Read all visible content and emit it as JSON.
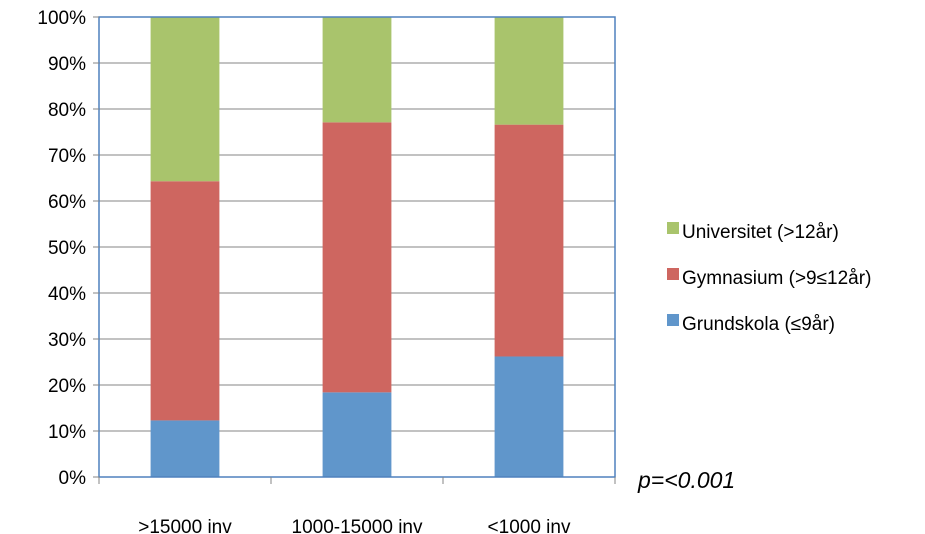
{
  "chart_data": {
    "type": "bar",
    "stacked": true,
    "normalized": true,
    "categories": [
      ">15000 inv",
      "1000-15000 inv",
      "<1000 inv"
    ],
    "series": [
      {
        "name": "Grundskola (≤9år)",
        "color": "#6096cb",
        "values": [
          12.3,
          18.4,
          26.2
        ]
      },
      {
        "name": "Gymnasium (>9≤12år)",
        "color": "#ce6660",
        "values": [
          52.0,
          58.7,
          50.4
        ]
      },
      {
        "name": "Universitet (>12år)",
        "color": "#a9c46c",
        "values": [
          35.7,
          22.9,
          23.4
        ]
      }
    ],
    "ylim": [
      0,
      100
    ],
    "yticks": [
      "0%",
      "10%",
      "20%",
      "30%",
      "40%",
      "50%",
      "60%",
      "70%",
      "80%",
      "90%",
      "100%"
    ],
    "legend_position": "right",
    "legend_order": [
      "Universitet (>12år)",
      "Gymnasium (>9≤12år)",
      "Grundskola (≤9år)"
    ],
    "annotation": "p=<0.001",
    "plot_border_color": "#4f81bd",
    "grid": true
  }
}
